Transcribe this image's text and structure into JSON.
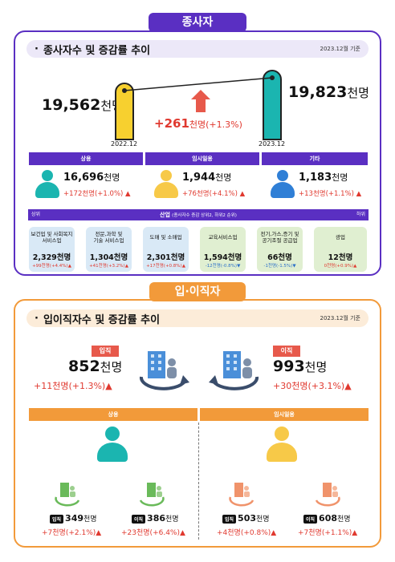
{
  "section1": {
    "tab_label": "종사자",
    "title": "종사자수 및 증감률 추이",
    "date": "2023.12월 기준",
    "left": {
      "value": "19,562",
      "unit": "천명",
      "year": "2022.12"
    },
    "right": {
      "value": "19,823",
      "unit": "천명",
      "year": "2023.12"
    },
    "change": {
      "value": "+261",
      "unit": "천명",
      "pct": "(+1.3%)"
    },
    "categories": [
      {
        "label": "상용",
        "value": "16,696",
        "unit": "천명",
        "change": "+172천명(+1.0%)"
      },
      {
        "label": "임시일용",
        "value": "1,944",
        "unit": "천명",
        "change": "+76천명(+4.1%)"
      },
      {
        "label": "기타",
        "value": "1,183",
        "unit": "천명",
        "change": "+13천명(+1.1%)"
      }
    ],
    "industry": {
      "title": "산업",
      "note": "(종사자수 증감 상위2, 하위2 순위)",
      "left_mark": "상위",
      "right_mark": "하위",
      "items": [
        {
          "name": "보건업 및 사회복지\n서비스업",
          "value": "2,329천명",
          "change": "+99천명(+4.4%)"
        },
        {
          "name": "전문,과학 및\n기술 서비스업",
          "value": "1,304천명",
          "change": "+41천명(+3.2%)"
        },
        {
          "name": "도매 및 소매업",
          "value": "2,301천명",
          "change": "+17천명(+0.8%)"
        },
        {
          "name": "교육서비스업",
          "value": "1,594천명",
          "change": "-12천명(-0.8%)"
        },
        {
          "name": "전기,가스,증기 및\n공기조절 공급업",
          "value": "66천명",
          "change": "-1천명(-1.5%)"
        },
        {
          "name": "광업",
          "value": "12천명",
          "change": "0천명(+0.9%)"
        }
      ]
    }
  },
  "section2": {
    "tab_label": "입·이직자",
    "title": "입이직자수 및 증감률 추이",
    "date": "2023.12월 기준",
    "entry": {
      "label": "입직",
      "value": "852",
      "unit": "천명",
      "change": "+11천명(+1.3%)"
    },
    "exit": {
      "label": "이직",
      "value": "993",
      "unit": "천명",
      "change": "+30천명(+3.1%)"
    },
    "groups": [
      {
        "label": "상용",
        "entry": {
          "badge": "입직",
          "value": "349",
          "unit": "천명",
          "change": "+7천명(+2.1%)"
        },
        "exit": {
          "badge": "이직",
          "value": "386",
          "unit": "천명",
          "change": "+23천명(+6.4%)"
        }
      },
      {
        "label": "임시일용",
        "entry": {
          "badge": "입직",
          "value": "503",
          "unit": "천명",
          "change": "+4천명(+0.8%)"
        },
        "exit": {
          "badge": "이직",
          "value": "608",
          "unit": "천명",
          "change": "+7천명(+1.1%)"
        }
      }
    ]
  },
  "colors": {
    "purple": "#5a2fc2",
    "orange": "#f29a3a",
    "teal": "#1bb5b0",
    "yellow": "#f7c948",
    "blue": "#2f7fd6",
    "red": "#e0392f"
  }
}
